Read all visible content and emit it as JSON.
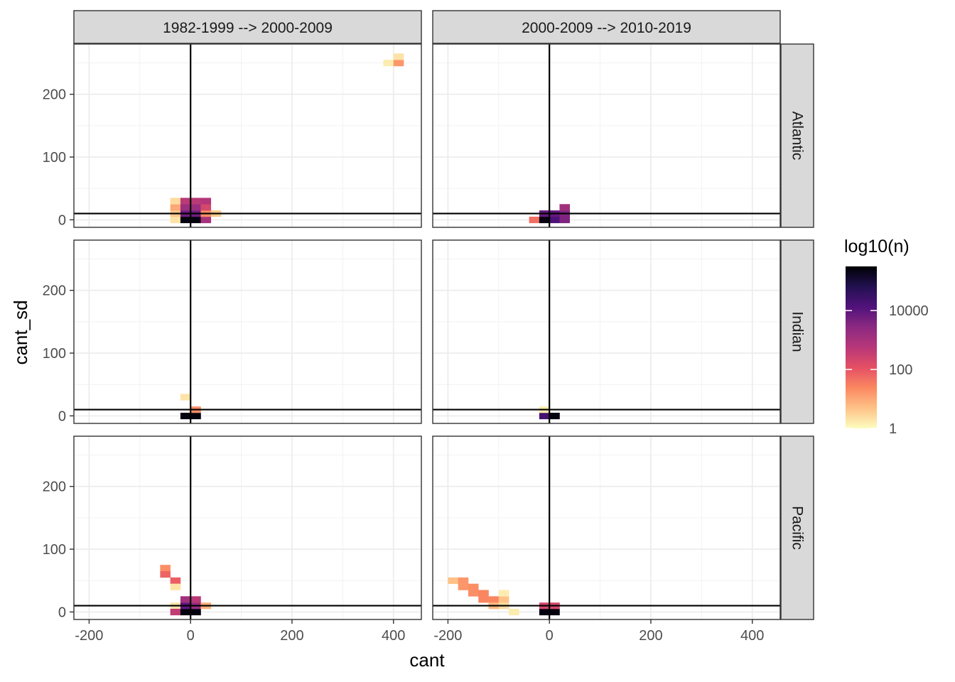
{
  "chart_data": {
    "type": "heatmap",
    "xlabel": "cant",
    "ylabel": "cant_sd",
    "xlim": [
      -230,
      455
    ],
    "ylim": [
      -12,
      280
    ],
    "x_ticks": [
      -200,
      0,
      200,
      400
    ],
    "y_ticks": [
      0,
      100,
      200
    ],
    "x_tick_labels": [
      "-200",
      "0",
      "200",
      "400"
    ],
    "y_tick_labels": [
      "0",
      "100",
      "200"
    ],
    "grid": true,
    "reference_lines": {
      "vertical_x": 0,
      "horizontal_y": 10
    },
    "bin_width": {
      "x": 20,
      "y": 10
    },
    "facet_columns": [
      "1982-1999 --> 2000-2009",
      "2000-2009 --> 2010-2019"
    ],
    "facet_rows": [
      "Atlantic",
      "Indian",
      "Pacific"
    ],
    "legend": {
      "title": "log10(n)",
      "position": "right",
      "scale": "log10",
      "ticks": [
        1,
        100,
        10000
      ],
      "tick_labels": [
        "1",
        "100",
        "10000"
      ],
      "max_log10": 5.5,
      "colormap": "magma",
      "colors": [
        "#fcfdbf",
        "#fec287",
        "#fb8861",
        "#e55064",
        "#b73779",
        "#8c2981",
        "#51127c",
        "#221150",
        "#000004"
      ]
    },
    "panels": [
      {
        "row": "Atlantic",
        "col": "1982-1999 --> 2000-2009",
        "cells": [
          [
            -30,
            0,
            0.3
          ],
          [
            -30,
            10,
            0.6
          ],
          [
            -30,
            20,
            1.0
          ],
          [
            -30,
            30,
            0.4
          ],
          [
            -10,
            0,
            5.4
          ],
          [
            -10,
            10,
            3.8
          ],
          [
            -10,
            20,
            3.2
          ],
          [
            -10,
            30,
            2.7
          ],
          [
            10,
            0,
            5.4
          ],
          [
            10,
            10,
            3.8
          ],
          [
            10,
            20,
            3.2
          ],
          [
            10,
            30,
            2.7
          ],
          [
            30,
            0,
            3.0
          ],
          [
            30,
            10,
            1.3
          ],
          [
            30,
            20,
            2.3
          ],
          [
            30,
            30,
            2.8
          ],
          [
            50,
            10,
            0.6
          ],
          [
            390,
            250,
            0.2
          ],
          [
            410,
            250,
            1.2
          ],
          [
            410,
            260,
            0.3
          ]
        ]
      },
      {
        "row": "Atlantic",
        "col": "2000-2009 --> 2010-2019",
        "cells": [
          [
            -30,
            0,
            1.7
          ],
          [
            -10,
            0,
            5.4
          ],
          [
            -10,
            10,
            3.9
          ],
          [
            10,
            0,
            4.2
          ],
          [
            10,
            10,
            3.9
          ],
          [
            30,
            0,
            3.6
          ],
          [
            30,
            10,
            3.6
          ],
          [
            30,
            20,
            3.1
          ]
        ]
      },
      {
        "row": "Indian",
        "col": "1982-1999 --> 2000-2009",
        "cells": [
          [
            -10,
            30,
            0.3
          ],
          [
            -10,
            0,
            5.4
          ],
          [
            10,
            0,
            5.4
          ],
          [
            10,
            10,
            1.3
          ]
        ]
      },
      {
        "row": "Indian",
        "col": "2000-2009 --> 2010-2019",
        "cells": [
          [
            -10,
            0,
            4.3
          ],
          [
            -10,
            10,
            0.2
          ],
          [
            10,
            0,
            5.4
          ]
        ]
      },
      {
        "row": "Pacific",
        "col": "1982-1999 --> 2000-2009",
        "cells": [
          [
            -50,
            70,
            1.3
          ],
          [
            -50,
            60,
            1.8
          ],
          [
            -30,
            50,
            1.9
          ],
          [
            -30,
            40,
            0.3
          ],
          [
            -30,
            10,
            0.3
          ],
          [
            -30,
            0,
            2.6
          ],
          [
            -10,
            0,
            5.4
          ],
          [
            -10,
            10,
            4.0
          ],
          [
            -10,
            20,
            3.1
          ],
          [
            10,
            0,
            5.4
          ],
          [
            10,
            10,
            3.3
          ],
          [
            10,
            20,
            2.7
          ],
          [
            30,
            10,
            0.9
          ]
        ]
      },
      {
        "row": "Pacific",
        "col": "2000-2009 --> 2010-2019",
        "cells": [
          [
            -190,
            50,
            0.7
          ],
          [
            -170,
            50,
            1.2
          ],
          [
            -170,
            40,
            1.2
          ],
          [
            -150,
            40,
            1.3
          ],
          [
            -150,
            30,
            1.3
          ],
          [
            -130,
            30,
            1.4
          ],
          [
            -130,
            20,
            1.4
          ],
          [
            -110,
            20,
            1.4
          ],
          [
            -110,
            10,
            0.8
          ],
          [
            -90,
            20,
            0.7
          ],
          [
            -90,
            30,
            0.2
          ],
          [
            -90,
            10,
            0.4
          ],
          [
            -70,
            0,
            0.2
          ],
          [
            -10,
            0,
            5.4
          ],
          [
            -10,
            10,
            2.3
          ],
          [
            10,
            0,
            5.4
          ],
          [
            10,
            10,
            2.3
          ]
        ]
      }
    ]
  }
}
